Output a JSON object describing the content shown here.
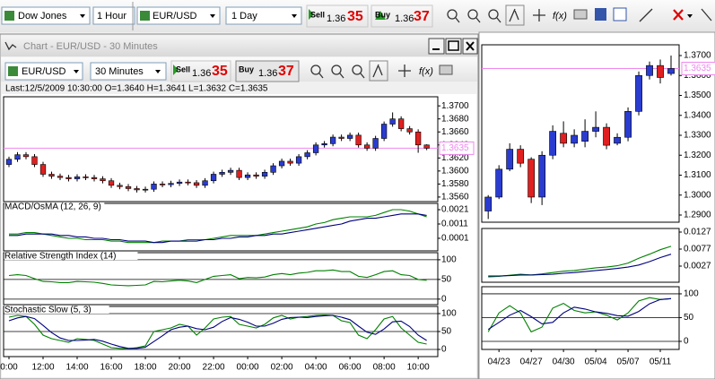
{
  "toolbar": {
    "left_symbol": "Dow Jones",
    "left_period": "1 Hour",
    "symbol": "EUR/USD",
    "period": "1 Day",
    "sell_label": "Sell",
    "sell_price": "1.36",
    "sell_pips": "35",
    "buy_label": "Buy",
    "buy_price": "1.36",
    "buy_pips": "37",
    "fx": "f(x)"
  },
  "window": {
    "title": "Chart - EUR/USD - 30 Minutes",
    "toolbar": {
      "symbol": "EUR/USD",
      "period": "30 Minutes",
      "sell_label": "Sell",
      "sell_price": "1.36",
      "sell_pips": "35",
      "buy_label": "Buy",
      "buy_price": "1.36",
      "buy_pips": "37",
      "fx": "f(x)"
    },
    "info": "Last:12/5/2009 10:30:00 O=1.3640 H=1.3641 L=1.3632 C=1.3635"
  },
  "chart_data": [
    {
      "type": "candlestick",
      "up_color": "#2a3cd0",
      "down_color": "#e02020",
      "xlim": [
        -0.63,
        50.3
      ],
      "ylim": [
        1.3553,
        1.3714
      ],
      "yticks": [
        {
          "value": 1.37,
          "label": "1.3700"
        },
        {
          "value": 1.368,
          "label": "1.3680"
        },
        {
          "value": 1.366,
          "label": "1.3660"
        },
        {
          "value": 1.364,
          "label": "1.3640"
        },
        {
          "value": 1.362,
          "label": "1.3620"
        },
        {
          "value": 1.36,
          "label": "1.3600"
        },
        {
          "value": 1.358,
          "label": "1.3580"
        },
        {
          "value": 1.356,
          "label": "1.3560"
        }
      ],
      "last_price": 1.3635,
      "last_price_color": "#ee88ee",
      "open": [
        1.361,
        1.3618,
        1.3625,
        1.3622,
        1.361,
        1.3595,
        1.3592,
        1.359,
        1.3588,
        1.3591,
        1.359,
        1.3588,
        1.3585,
        1.3578,
        1.3576,
        1.3573,
        1.3571,
        1.3572,
        1.358,
        1.3579,
        1.3581,
        1.3583,
        1.3582,
        1.3578,
        1.3585,
        1.3595,
        1.3598,
        1.3601,
        1.359,
        1.3594,
        1.3592,
        1.3598,
        1.3608,
        1.3615,
        1.3612,
        1.3622,
        1.3628,
        1.364,
        1.3642,
        1.3652,
        1.365,
        1.3655,
        1.364,
        1.3635,
        1.365,
        1.3672,
        1.368,
        1.3665,
        1.366,
        1.364
      ],
      "high": [
        1.3622,
        1.3629,
        1.3629,
        1.3626,
        1.3614,
        1.3599,
        1.3596,
        1.3594,
        1.3595,
        1.3595,
        1.3594,
        1.3592,
        1.3589,
        1.3582,
        1.358,
        1.3577,
        1.3576,
        1.3584,
        1.3584,
        1.3585,
        1.3587,
        1.3587,
        1.3586,
        1.3589,
        1.3599,
        1.3602,
        1.3605,
        1.3605,
        1.3598,
        1.3598,
        1.3602,
        1.3612,
        1.3619,
        1.3619,
        1.3626,
        1.3632,
        1.3644,
        1.3646,
        1.3656,
        1.3656,
        1.3659,
        1.3659,
        1.3644,
        1.3654,
        1.3676,
        1.369,
        1.3684,
        1.3669,
        1.3664,
        1.3641
      ],
      "low": [
        1.3606,
        1.3614,
        1.3618,
        1.3606,
        1.3591,
        1.3588,
        1.3586,
        1.3584,
        1.3584,
        1.3586,
        1.3584,
        1.3581,
        1.3574,
        1.3572,
        1.3569,
        1.3567,
        1.3567,
        1.3568,
        1.3575,
        1.3575,
        1.3577,
        1.3578,
        1.3574,
        1.3574,
        1.3581,
        1.3591,
        1.3594,
        1.3586,
        1.3586,
        1.3588,
        1.3588,
        1.3594,
        1.3604,
        1.3608,
        1.3608,
        1.3618,
        1.3624,
        1.3636,
        1.3638,
        1.3646,
        1.3646,
        1.3636,
        1.3631,
        1.3631,
        1.3646,
        1.3668,
        1.3661,
        1.3656,
        1.3628,
        1.3632
      ],
      "close": [
        1.3618,
        1.3625,
        1.3622,
        1.361,
        1.3595,
        1.3592,
        1.359,
        1.3588,
        1.3591,
        1.359,
        1.3588,
        1.3585,
        1.3578,
        1.3576,
        1.3573,
        1.3571,
        1.3572,
        1.358,
        1.3579,
        1.3581,
        1.3583,
        1.3582,
        1.3578,
        1.3585,
        1.3595,
        1.3598,
        1.3601,
        1.359,
        1.3594,
        1.3592,
        1.3598,
        1.3608,
        1.3615,
        1.3612,
        1.3622,
        1.3628,
        1.364,
        1.3642,
        1.3652,
        1.365,
        1.3655,
        1.364,
        1.3635,
        1.365,
        1.3672,
        1.368,
        1.3665,
        1.366,
        1.364,
        1.3635
      ]
    },
    {
      "type": "line",
      "title": "MACD/OsMA (12, 26, 9)",
      "xlim": [
        -0.63,
        50.3
      ],
      "ylim": [
        -0.00078,
        0.00254
      ],
      "yticks": [
        0.0021,
        0.0011,
        0.0001
      ],
      "series": [
        {
          "color": "#008000",
          "values": [
            0.0004,
            0.0004,
            0.0005,
            0.0005,
            0.0004,
            0.0003,
            0.0002,
            0.0001,
            0.0001,
            0,
            0,
            0,
            -0.0001,
            -0.0001,
            -0.0002,
            -0.0002,
            -0.0002,
            -0.0002,
            -0.0001,
            -0.0001,
            -0.0001,
            0,
            0,
            0,
            0.0001,
            0.0002,
            0.0003,
            0.0003,
            0.0003,
            0.0003,
            0.0004,
            0.0005,
            0.0006,
            0.0007,
            0.0008,
            0.0009,
            0.0011,
            0.0012,
            0.0014,
            0.0015,
            0.0016,
            0.0016,
            0.0016,
            0.0017,
            0.0019,
            0.0021,
            0.0021,
            0.002,
            0.0018,
            0.0016
          ]
        },
        {
          "color": "#000080",
          "values": [
            0.0003,
            0.0003,
            0.0004,
            0.0004,
            0.0004,
            0.0004,
            0.0003,
            0.0003,
            0.0002,
            0.0002,
            0.0001,
            0.0001,
            0,
            0,
            -0.0001,
            -0.0001,
            -0.0001,
            -0.0002,
            -0.0002,
            -0.0001,
            -0.0001,
            -0.0001,
            -0.0001,
            0,
            0,
            0.0001,
            0.0001,
            0.0002,
            0.0002,
            0.0003,
            0.0003,
            0.0004,
            0.0004,
            0.0005,
            0.0006,
            0.0007,
            0.0008,
            0.0009,
            0.001,
            0.0011,
            0.0013,
            0.0014,
            0.0015,
            0.0015,
            0.0016,
            0.0017,
            0.0018,
            0.0018,
            0.0018,
            0.0017
          ]
        }
      ]
    },
    {
      "type": "line",
      "title": "Relative Strength Index (14)",
      "grid": true,
      "xlim": [
        -0.63,
        50.3
      ],
      "ylim": [
        -14,
        118
      ],
      "yticks": [
        100,
        50,
        0
      ],
      "series": [
        {
          "color": "#008000",
          "values": [
            60,
            62,
            60,
            52,
            45,
            44,
            42,
            42,
            45,
            44,
            43,
            40,
            36,
            35,
            34,
            35,
            36,
            45,
            44,
            46,
            48,
            46,
            42,
            50,
            58,
            60,
            62,
            52,
            55,
            54,
            56,
            62,
            65,
            62,
            66,
            68,
            72,
            72,
            74,
            70,
            70,
            58,
            55,
            62,
            70,
            72,
            62,
            60,
            50,
            48
          ]
        }
      ]
    },
    {
      "type": "line",
      "title": "Stochastic Slow (5, 3)",
      "grid": true,
      "xlim": [
        -0.63,
        50.3
      ],
      "ylim": [
        -20,
        120
      ],
      "yticks": [
        100,
        50,
        0
      ],
      "xticks": [
        {
          "value": 0,
          "label": "0:00"
        },
        {
          "value": 4,
          "label": "12:00"
        },
        {
          "value": 8,
          "label": "14:00"
        },
        {
          "value": 12,
          "label": "16:00"
        },
        {
          "value": 16,
          "label": "18:00"
        },
        {
          "value": 20,
          "label": "20:00"
        },
        {
          "value": 24,
          "label": "22:00"
        },
        {
          "value": 28,
          "label": "00:00"
        },
        {
          "value": 32,
          "label": "02:00"
        },
        {
          "value": 36,
          "label": "04:00"
        },
        {
          "value": 40,
          "label": "06:00"
        },
        {
          "value": 44,
          "label": "08:00"
        },
        {
          "value": 48,
          "label": "10:00"
        }
      ],
      "series": [
        {
          "color": "#008000",
          "values": [
            90,
            95,
            92,
            70,
            40,
            30,
            25,
            20,
            30,
            28,
            25,
            15,
            5,
            3,
            2,
            5,
            10,
            50,
            55,
            60,
            70,
            65,
            40,
            60,
            85,
            90,
            92,
            70,
            65,
            60,
            70,
            88,
            95,
            85,
            90,
            92,
            95,
            96,
            95,
            80,
            75,
            40,
            30,
            55,
            85,
            92,
            60,
            40,
            20,
            15
          ]
        },
        {
          "color": "#000080",
          "values": [
            80,
            88,
            92,
            86,
            67,
            47,
            32,
            25,
            25,
            26,
            28,
            23,
            15,
            8,
            3,
            3,
            6,
            22,
            38,
            55,
            62,
            65,
            58,
            55,
            62,
            78,
            89,
            84,
            76,
            65,
            65,
            73,
            84,
            89,
            90,
            89,
            92,
            94,
            95,
            90,
            83,
            65,
            48,
            42,
            57,
            77,
            79,
            64,
            40,
            25
          ]
        }
      ]
    },
    {
      "type": "candlestick",
      "up_color": "#2a3cd0",
      "down_color": "#e02020",
      "xlim": [
        -0.6,
        17.75
      ],
      "ylim": [
        1.2864,
        1.3754
      ],
      "yticks": [
        {
          "value": 1.37,
          "label": "1.3700"
        },
        {
          "value": 1.36,
          "label": "1.3600"
        },
        {
          "value": 1.35,
          "label": "1.3500"
        },
        {
          "value": 1.34,
          "label": "1.3400"
        },
        {
          "value": 1.33,
          "label": "1.3300"
        },
        {
          "value": 1.32,
          "label": "1.3200"
        },
        {
          "value": 1.31,
          "label": "1.3100"
        },
        {
          "value": 1.3,
          "label": "1.3000"
        },
        {
          "value": 1.29,
          "label": "1.2900"
        }
      ],
      "last_price": 1.3635,
      "last_price_color": "#ee88ee",
      "open": [
        1.292,
        1.299,
        1.313,
        1.323,
        1.318,
        1.299,
        1.32,
        1.331,
        1.326,
        1.327,
        1.332,
        1.334,
        1.326,
        1.329,
        1.342,
        1.36,
        1.365,
        1.361
      ],
      "high": [
        1.3,
        1.315,
        1.326,
        1.325,
        1.319,
        1.322,
        1.335,
        1.337,
        1.333,
        1.338,
        1.342,
        1.336,
        1.331,
        1.344,
        1.362,
        1.367,
        1.368,
        1.37
      ],
      "low": [
        1.288,
        1.298,
        1.312,
        1.314,
        1.296,
        1.295,
        1.318,
        1.324,
        1.324,
        1.324,
        1.329,
        1.323,
        1.325,
        1.327,
        1.34,
        1.358,
        1.356,
        1.36
      ],
      "close": [
        1.299,
        1.313,
        1.323,
        1.316,
        1.299,
        1.32,
        1.332,
        1.326,
        1.33,
        1.332,
        1.334,
        1.325,
        1.329,
        1.342,
        1.36,
        1.365,
        1.359,
        1.3635
      ]
    },
    {
      "type": "line",
      "xlim": [
        -0.6,
        17.75
      ],
      "ylim": [
        -0.00204,
        0.01375
      ],
      "yticks": [
        0.0127,
        0.0077,
        0.0027
      ],
      "series": [
        {
          "color": "#008000",
          "values": [
            -0.0005,
            -0.0003,
            0,
            0.0003,
            0.0001,
            0.0004,
            0.0008,
            0.0012,
            0.0014,
            0.0018,
            0.0022,
            0.0024,
            0.0028,
            0.0036,
            0.005,
            0.0062,
            0.0075,
            0.0085
          ]
        },
        {
          "color": "#000080",
          "values": [
            -0.0002,
            -0.0002,
            -0.0001,
            0.0001,
            0.0001,
            0.0002,
            0.0003,
            0.0006,
            0.0008,
            0.0011,
            0.0014,
            0.0017,
            0.002,
            0.0024,
            0.003,
            0.004,
            0.0052,
            0.0062
          ]
        }
      ]
    },
    {
      "type": "line",
      "grid": true,
      "xlim": [
        -0.6,
        17.75
      ],
      "ylim": [
        -17,
        115
      ],
      "yticks": [
        100,
        50,
        0
      ],
      "categories": [
        null,
        "04/23",
        null,
        null,
        "04/27",
        null,
        null,
        "04/30",
        null,
        null,
        "05/04",
        null,
        null,
        "05/07",
        null,
        null,
        "05/11",
        null
      ],
      "series": [
        {
          "color": "#008000",
          "values": [
            20,
            60,
            75,
            60,
            20,
            30,
            70,
            80,
            65,
            60,
            62,
            55,
            45,
            60,
            85,
            92,
            88,
            90
          ]
        },
        {
          "color": "#000080",
          "values": [
            25,
            40,
            55,
            65,
            52,
            37,
            40,
            60,
            72,
            68,
            62,
            59,
            54,
            53,
            63,
            79,
            88,
            90
          ]
        }
      ]
    }
  ]
}
